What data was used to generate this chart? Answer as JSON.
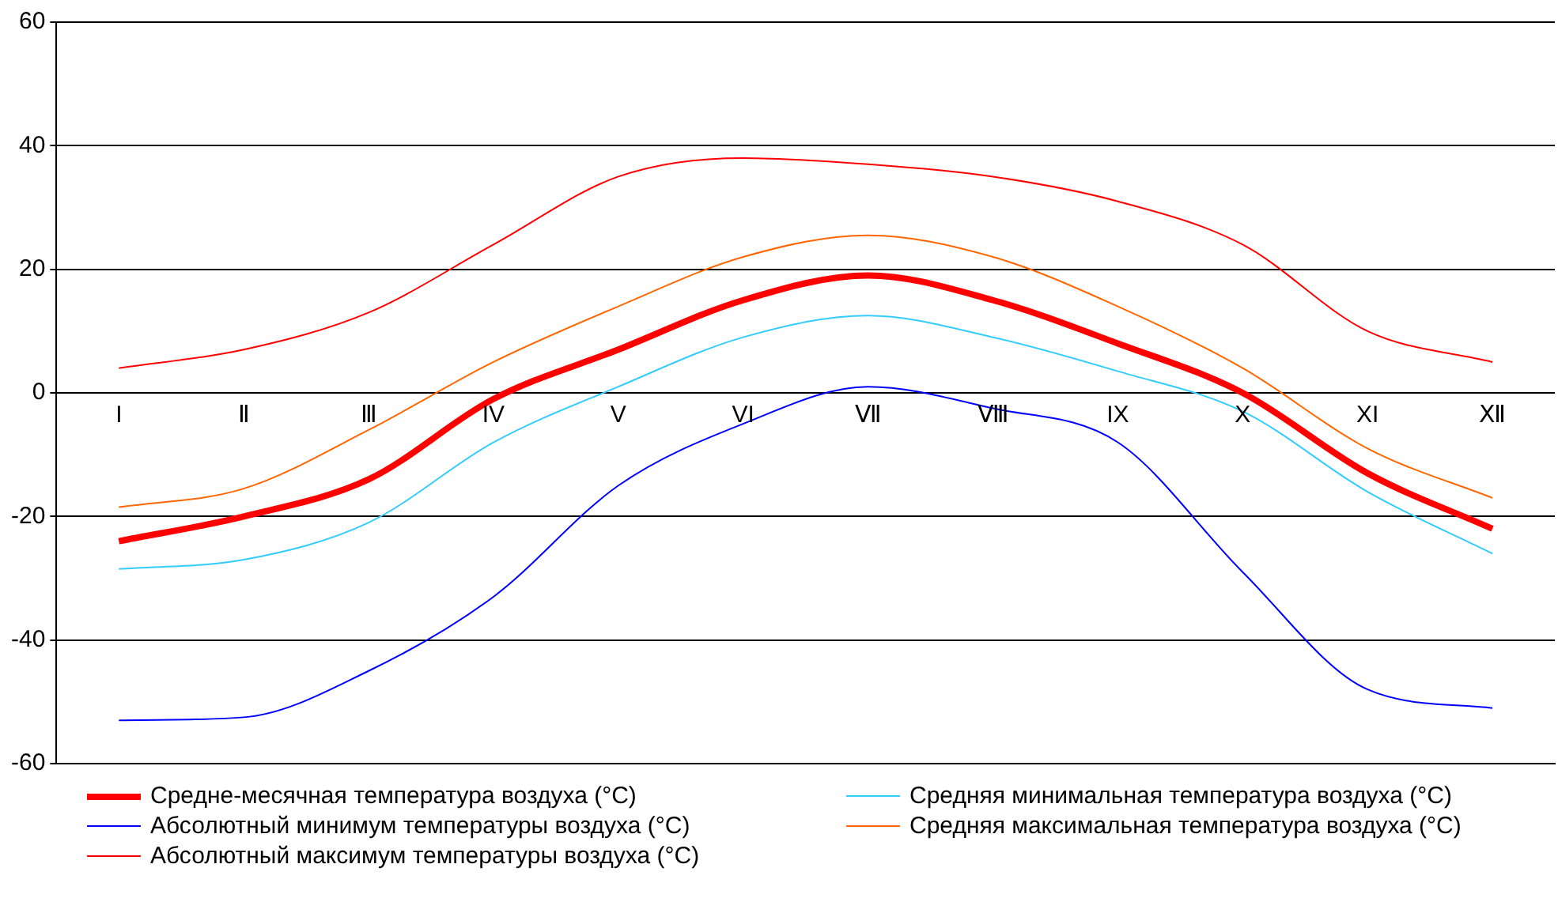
{
  "chart_data": {
    "type": "line",
    "categories": [
      "I",
      "Ⅱ",
      "Ⅲ",
      "IV",
      "V",
      "VI",
      "Ⅶ",
      "Ⅷ",
      "IX",
      "X",
      "XI",
      "Ⅻ"
    ],
    "series": [
      {
        "name": "Средне-месячная температура воздуха (°C)",
        "color": "#ff0000",
        "values": [
          -24,
          -20,
          -14,
          -1,
          7,
          15,
          19,
          15,
          8,
          0,
          -13,
          -22
        ]
      },
      {
        "name": "Средняя минимальная температура воздуха (°C)",
        "color": "#33ccff",
        "values": [
          -28.5,
          -27,
          -21,
          -8,
          1,
          9,
          12.5,
          9,
          3.5,
          -3,
          -16,
          -26
        ]
      },
      {
        "name": "Абсолютный минимум температуры воздуха (°C)",
        "color": "#0000ff",
        "values": [
          -53,
          -52.5,
          -45,
          -33,
          -15,
          -5,
          1,
          -2.5,
          -8,
          -29,
          -48,
          -51
        ]
      },
      {
        "name": "Средняя максимальная температура воздуха (°C)",
        "color": "#ff6600",
        "values": [
          -18.5,
          -15.5,
          -6,
          5,
          14,
          22,
          25.5,
          22,
          14,
          4,
          -9,
          -17
        ]
      },
      {
        "name": "Абсолютный максимум температуры воздуха (°C)",
        "color": "#ff0000",
        "values": [
          4,
          7,
          13,
          24,
          35,
          38,
          37,
          35,
          31,
          24,
          10,
          5
        ]
      }
    ],
    "ylim": [
      -60,
      60
    ],
    "yticks": [
      -60,
      -40,
      -20,
      0,
      20,
      40,
      60
    ],
    "grid": "y",
    "legend": "bottom",
    "marker": "none",
    "line_style": "solid"
  }
}
